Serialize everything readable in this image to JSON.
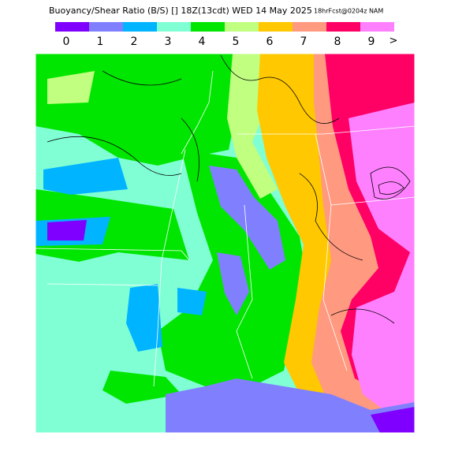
{
  "header": {
    "title": "Buoyancy/Shear Ratio (B/S) [] 18Z(13cdt) WED 14 May 2025",
    "subtitle": "18hrFcst@0204z NAM"
  },
  "legend": {
    "labels": [
      "0",
      "1",
      "2",
      "3",
      "4",
      "5",
      "6",
      "7",
      "8",
      "9"
    ],
    "colors": [
      "#8000ff",
      "#8080ff",
      "#00b4ff",
      "#80ffd4",
      "#00e600",
      "#c0ff80",
      "#ffc800",
      "#ff9980",
      "#ff0064",
      "#ff80ff"
    ],
    "overflow_label": ">"
  }
}
